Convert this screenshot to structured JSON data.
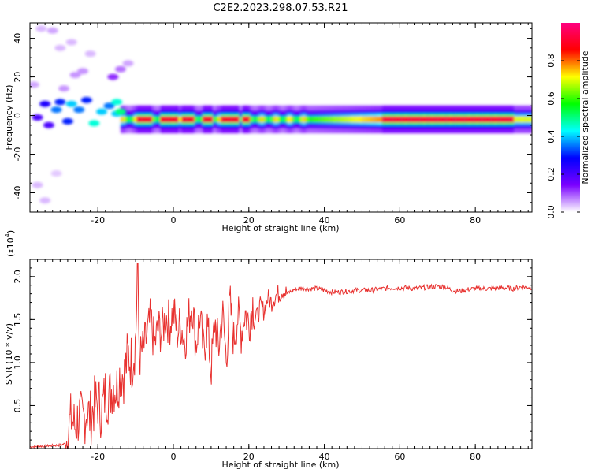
{
  "figure_title": "C2E2.2023.298.07.53.R21",
  "chart_data": [
    {
      "type": "heatmap",
      "title": "",
      "xlabel": "Height of straight line (km)",
      "ylabel": "Frequency (Hz)",
      "xlim": [
        -38,
        95
      ],
      "ylim": [
        -50,
        48
      ],
      "xticks": [
        -20,
        0,
        20,
        40,
        60,
        80
      ],
      "yticks": [
        -40,
        -20,
        0,
        20,
        40
      ],
      "colorbar": {
        "label": "Normalized spectral amplitude",
        "range": [
          0,
          1
        ],
        "ticks": [
          0.0,
          0.2,
          0.4,
          0.6,
          0.8
        ],
        "colormap": [
          "#ffffff",
          "#7a00ff",
          "#0000ff",
          "#00ffff",
          "#00ff00",
          "#ffff00",
          "#ff0000",
          "#ff0080"
        ]
      },
      "ridge": {
        "frequency_hz": -2,
        "peak_amplitude_ranges_km": [
          [
            -10,
            -6
          ],
          [
            -4,
            1
          ],
          [
            2,
            5
          ],
          [
            7,
            10
          ],
          [
            12,
            17
          ],
          [
            18,
            20
          ],
          [
            55,
            90
          ]
        ],
        "band_halfwidth_hz": 4
      },
      "scattered_blobs": [
        {
          "x": -34,
          "y": 6,
          "a": 0.25
        },
        {
          "x": -31,
          "y": 3,
          "a": 0.35
        },
        {
          "x": -30,
          "y": 7,
          "a": 0.3
        },
        {
          "x": -28,
          "y": -3,
          "a": 0.3
        },
        {
          "x": -27,
          "y": 6,
          "a": 0.4
        },
        {
          "x": -25,
          "y": 3,
          "a": 0.35
        },
        {
          "x": -23,
          "y": 8,
          "a": 0.3
        },
        {
          "x": -21,
          "y": -4,
          "a": 0.45
        },
        {
          "x": -19,
          "y": 2,
          "a": 0.4
        },
        {
          "x": -17,
          "y": 5,
          "a": 0.35
        },
        {
          "x": -15,
          "y": 1,
          "a": 0.4
        },
        {
          "x": -15,
          "y": 7,
          "a": 0.45
        },
        {
          "x": -14,
          "y": 2,
          "a": 0.5
        },
        {
          "x": -36,
          "y": -1,
          "a": 0.2
        },
        {
          "x": -33,
          "y": -5,
          "a": 0.2
        },
        {
          "x": -26,
          "y": 21,
          "a": 0.06
        },
        {
          "x": -24,
          "y": 23,
          "a": 0.06
        },
        {
          "x": -16,
          "y": 20,
          "a": 0.12
        },
        {
          "x": -14,
          "y": 24,
          "a": 0.08
        },
        {
          "x": -32,
          "y": 44,
          "a": 0.05
        },
        {
          "x": -35,
          "y": 45,
          "a": 0.04
        },
        {
          "x": -30,
          "y": 35,
          "a": 0.04
        },
        {
          "x": -27,
          "y": 38,
          "a": 0.04
        },
        {
          "x": -36,
          "y": -36,
          "a": 0.04
        },
        {
          "x": -34,
          "y": -44,
          "a": 0.04
        },
        {
          "x": -31,
          "y": -30,
          "a": 0.03
        },
        {
          "x": -12,
          "y": 27,
          "a": 0.05
        },
        {
          "x": -29,
          "y": 14,
          "a": 0.06
        },
        {
          "x": -22,
          "y": 32,
          "a": 0.04
        },
        {
          "x": -37,
          "y": 16,
          "a": 0.05
        }
      ]
    },
    {
      "type": "line",
      "title": "",
      "xlabel": "Height of straight line (km)",
      "ylabel": "SNR (10 * v/v)",
      "y_multiplier_label": "(x10",
      "y_multiplier_exponent": "4",
      "xlim": [
        -38,
        95
      ],
      "ylim": [
        0,
        2.2
      ],
      "xticks": [
        -20,
        0,
        20,
        40,
        60,
        80
      ],
      "yticks": [
        0.5,
        1.0,
        1.5,
        2.0
      ],
      "color": "#e8312f",
      "series": [
        {
          "x": [
            -38,
            -34,
            -30,
            -28.5,
            -28,
            -27,
            -26,
            -25,
            -24,
            -23,
            -22,
            -21,
            -20,
            -19,
            -18,
            -17,
            -16,
            -15,
            -14,
            -13,
            -12,
            -11,
            -10,
            -9.5,
            -9,
            -8,
            -7,
            -6,
            -5,
            -4,
            -3,
            -2,
            -1,
            0,
            1,
            2,
            3,
            4,
            5,
            6,
            7,
            8,
            9,
            10,
            11,
            12,
            13,
            14,
            15,
            16,
            17,
            18,
            19,
            20,
            21,
            22,
            23,
            24,
            25,
            26,
            27,
            28,
            29,
            30,
            32,
            34,
            36,
            38,
            40,
            42,
            44,
            46,
            48,
            50,
            52,
            54,
            56,
            58,
            60,
            62,
            64,
            66,
            68,
            70,
            72,
            74,
            76,
            78,
            80,
            82,
            84,
            86,
            88,
            90,
            92,
            94,
            95
          ],
          "y": [
            0.02,
            0.03,
            0.04,
            0.06,
            0.2,
            0.35,
            0.25,
            0.38,
            0.3,
            0.45,
            0.35,
            0.5,
            0.55,
            0.42,
            0.65,
            0.6,
            0.75,
            0.7,
            0.9,
            0.85,
            1.1,
            1.0,
            1.25,
            2.1,
            1.05,
            1.15,
            1.3,
            1.5,
            1.2,
            1.4,
            1.35,
            1.55,
            1.45,
            1.6,
            1.35,
            1.45,
            1.25,
            1.5,
            1.7,
            1.2,
            1.55,
            1.1,
            1.45,
            0.9,
            1.5,
            1.15,
            1.6,
            1.05,
            1.7,
            1.25,
            1.55,
            1.35,
            1.6,
            1.45,
            1.7,
            1.5,
            1.65,
            1.6,
            1.75,
            1.7,
            1.78,
            1.8,
            1.85,
            1.8,
            1.85,
            1.87,
            1.86,
            1.86,
            1.84,
            1.82,
            1.82,
            1.83,
            1.84,
            1.84,
            1.84,
            1.85,
            1.86,
            1.87,
            1.87,
            1.87,
            1.86,
            1.87,
            1.88,
            1.89,
            1.88,
            1.84,
            1.83,
            1.85,
            1.86,
            1.86,
            1.86,
            1.87,
            1.87,
            1.86,
            1.88,
            1.88,
            1.87
          ]
        }
      ]
    }
  ]
}
